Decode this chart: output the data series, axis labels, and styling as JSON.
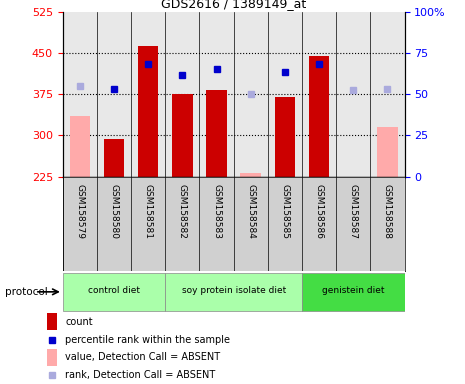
{
  "title": "GDS2616 / 1389149_at",
  "samples": [
    "GSM158579",
    "GSM158580",
    "GSM158581",
    "GSM158582",
    "GSM158583",
    "GSM158584",
    "GSM158585",
    "GSM158586",
    "GSM158587",
    "GSM158588"
  ],
  "bar_values": [
    335,
    293,
    462,
    375,
    383,
    232,
    370,
    445,
    225,
    315
  ],
  "bar_absent": [
    true,
    false,
    false,
    false,
    false,
    true,
    false,
    false,
    true,
    true
  ],
  "rank_values": [
    390,
    385,
    430,
    410,
    420,
    375,
    415,
    430,
    382,
    385
  ],
  "rank_absent": [
    true,
    false,
    false,
    false,
    false,
    true,
    false,
    false,
    true,
    true
  ],
  "ylim_left": [
    225,
    525
  ],
  "ylim_right": [
    0,
    100
  ],
  "yticks_left": [
    225,
    300,
    375,
    450,
    525
  ],
  "yticks_right": [
    0,
    25,
    50,
    75,
    100
  ],
  "group_defs": [
    {
      "start": 0,
      "end": 2,
      "color": "#aaffaa",
      "label": "control diet"
    },
    {
      "start": 3,
      "end": 6,
      "color": "#aaffaa",
      "label": "soy protein isolate diet"
    },
    {
      "start": 7,
      "end": 9,
      "color": "#44dd44",
      "label": "genistein diet"
    }
  ],
  "bar_color_present": "#cc0000",
  "bar_color_absent": "#ffaaaa",
  "rank_color_present": "#0000cc",
  "rank_color_absent": "#aaaadd",
  "protocol_label": "protocol",
  "grid_yticks": [
    300,
    375,
    450
  ],
  "legend_items": [
    {
      "color": "#cc0000",
      "type": "bar",
      "label": "count"
    },
    {
      "color": "#0000cc",
      "type": "square",
      "label": "percentile rank within the sample"
    },
    {
      "color": "#ffaaaa",
      "type": "bar",
      "label": "value, Detection Call = ABSENT"
    },
    {
      "color": "#aaaadd",
      "type": "square",
      "label": "rank, Detection Call = ABSENT"
    }
  ]
}
